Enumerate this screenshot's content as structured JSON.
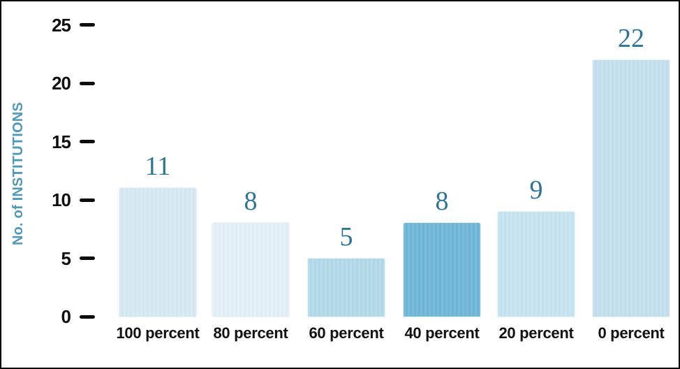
{
  "chart_data": {
    "type": "bar",
    "title": "",
    "xlabel": "",
    "ylabel": "No. of INSTITUTIONS",
    "categories": [
      "100 percent",
      "80 percent",
      "60 percent",
      "40 percent",
      "20 percent",
      "0 percent"
    ],
    "values": [
      11,
      8,
      5,
      8,
      9,
      22
    ],
    "bar_colors": [
      "#d7e9f3",
      "#e4eff7",
      "#b4d9e9",
      "#70b6d7",
      "#c7e4f0",
      "#c3e0ed"
    ],
    "yticks": [
      0,
      5,
      10,
      15,
      20,
      25
    ],
    "ylim": [
      0,
      26
    ],
    "grid": false,
    "legend_position": "none",
    "value_label_color": "#2d7495",
    "axis_title_color": "#4f98b8",
    "tick_color": "#101010"
  }
}
